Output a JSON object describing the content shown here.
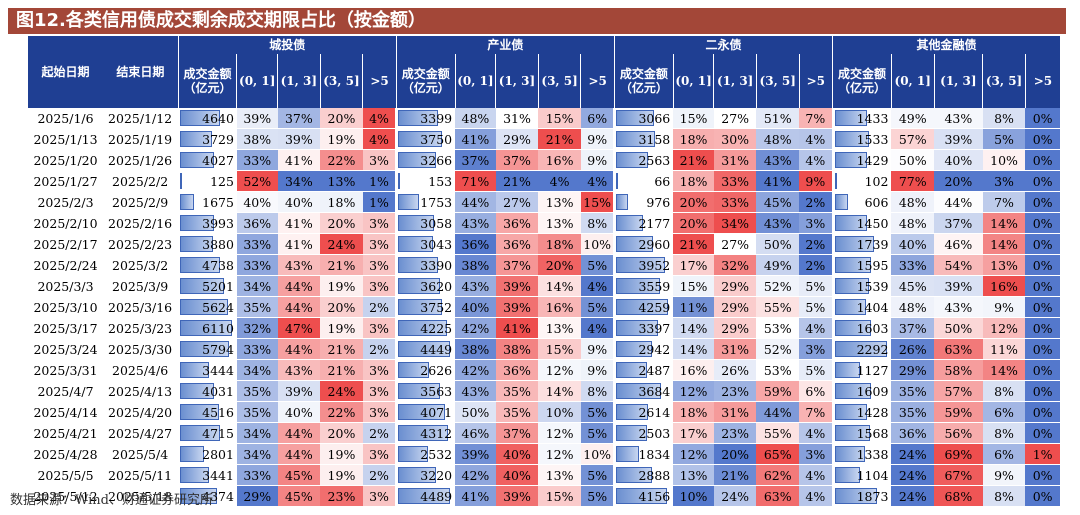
{
  "title": "图12.各类信用债成交剩余成交期限占比（按金额）",
  "header": {
    "start_date": "起始日期",
    "end_date": "结束日期",
    "groups": [
      "城投债",
      "产业债",
      "二永债",
      "其他金融债"
    ],
    "subheaders": [
      "成交金额（亿元）",
      "(0, 1]",
      "(1, 3]",
      "(3, 5]",
      ">5"
    ]
  },
  "note": "数据来源：Wind、财通证券研究所",
  "chart_data": {
    "type": "table",
    "title": "图12.各类信用债成交剩余成交期限占比（按金额）",
    "columns": [
      "起始日期",
      "结束日期",
      "城投债",
      "产业债",
      "二永债",
      "其他金融债"
    ],
    "metrics": [
      "成交金额（亿元）",
      "(0, 1]",
      "(1, 3]",
      "(3, 5]",
      ">5"
    ],
    "rows": [
      {
        "start": "2025/1/6",
        "end": "2025/1/12",
        "values": [
          [
            4640,
            39,
            37,
            20,
            4
          ],
          [
            3399,
            48,
            31,
            15,
            6
          ],
          [
            3066,
            15,
            27,
            51,
            7
          ],
          [
            1433,
            49,
            43,
            8,
            0
          ]
        ]
      },
      {
        "start": "2025/1/13",
        "end": "2025/1/19",
        "values": [
          [
            3729,
            38,
            39,
            19,
            4
          ],
          [
            3750,
            41,
            29,
            21,
            9
          ],
          [
            3158,
            18,
            30,
            48,
            4
          ],
          [
            1533,
            57,
            39,
            5,
            0
          ]
        ]
      },
      {
        "start": "2025/1/20",
        "end": "2025/1/26",
        "values": [
          [
            4027,
            33,
            41,
            22,
            3
          ],
          [
            3266,
            37,
            37,
            16,
            9
          ],
          [
            2563,
            21,
            31,
            43,
            4
          ],
          [
            1429,
            50,
            40,
            10,
            0
          ]
        ]
      },
      {
        "start": "2025/1/27",
        "end": "2025/2/2",
        "values": [
          [
            125,
            52,
            34,
            13,
            1
          ],
          [
            153,
            71,
            21,
            4,
            4
          ],
          [
            66,
            18,
            33,
            41,
            9
          ],
          [
            102,
            77,
            20,
            3,
            0
          ]
        ]
      },
      {
        "start": "2025/2/3",
        "end": "2025/2/9",
        "values": [
          [
            1675,
            40,
            40,
            18,
            1
          ],
          [
            1753,
            44,
            27,
            13,
            15
          ],
          [
            976,
            20,
            33,
            45,
            2
          ],
          [
            606,
            48,
            44,
            7,
            0
          ]
        ]
      },
      {
        "start": "2025/2/10",
        "end": "2025/2/16",
        "values": [
          [
            3993,
            36,
            41,
            20,
            3
          ],
          [
            3058,
            43,
            36,
            13,
            8
          ],
          [
            2177,
            20,
            34,
            43,
            3
          ],
          [
            1450,
            48,
            37,
            14,
            0
          ]
        ]
      },
      {
        "start": "2025/2/17",
        "end": "2025/2/23",
        "values": [
          [
            3880,
            33,
            41,
            24,
            3
          ],
          [
            3043,
            36,
            36,
            18,
            10
          ],
          [
            2960,
            21,
            27,
            50,
            2
          ],
          [
            1739,
            40,
            46,
            14,
            0
          ]
        ]
      },
      {
        "start": "2025/2/24",
        "end": "2025/3/2",
        "values": [
          [
            4738,
            33,
            43,
            21,
            3
          ],
          [
            3390,
            38,
            37,
            20,
            5
          ],
          [
            3952,
            17,
            32,
            49,
            2
          ],
          [
            1595,
            33,
            54,
            13,
            0
          ]
        ]
      },
      {
        "start": "2025/3/3",
        "end": "2025/3/9",
        "values": [
          [
            5201,
            34,
            44,
            19,
            3
          ],
          [
            3620,
            43,
            39,
            14,
            4
          ],
          [
            3559,
            15,
            29,
            52,
            5
          ],
          [
            1539,
            45,
            39,
            16,
            0
          ]
        ]
      },
      {
        "start": "2025/3/10",
        "end": "2025/3/16",
        "values": [
          [
            5624,
            35,
            44,
            20,
            2
          ],
          [
            3752,
            40,
            39,
            16,
            5
          ],
          [
            4259,
            11,
            29,
            55,
            5
          ],
          [
            1404,
            48,
            43,
            9,
            0
          ]
        ]
      },
      {
        "start": "2025/3/17",
        "end": "2025/3/23",
        "values": [
          [
            6110,
            32,
            47,
            19,
            3
          ],
          [
            4225,
            42,
            41,
            13,
            4
          ],
          [
            3397,
            14,
            29,
            53,
            4
          ],
          [
            1603,
            37,
            50,
            12,
            0
          ]
        ]
      },
      {
        "start": "2025/3/24",
        "end": "2025/3/30",
        "values": [
          [
            5794,
            33,
            44,
            21,
            2
          ],
          [
            4449,
            38,
            38,
            15,
            9
          ],
          [
            2942,
            14,
            31,
            52,
            3
          ],
          [
            2292,
            26,
            63,
            11,
            0
          ]
        ]
      },
      {
        "start": "2025/3/31",
        "end": "2025/4/6",
        "values": [
          [
            3444,
            34,
            43,
            21,
            3
          ],
          [
            2626,
            42,
            36,
            12,
            9
          ],
          [
            2487,
            16,
            26,
            53,
            5
          ],
          [
            1127,
            29,
            58,
            14,
            0
          ]
        ]
      },
      {
        "start": "2025/4/7",
        "end": "2025/4/13",
        "values": [
          [
            4031,
            35,
            39,
            24,
            3
          ],
          [
            3563,
            43,
            35,
            14,
            8
          ],
          [
            3684,
            12,
            23,
            59,
            6
          ],
          [
            1609,
            35,
            57,
            8,
            0
          ]
        ]
      },
      {
        "start": "2025/4/14",
        "end": "2025/4/20",
        "values": [
          [
            4516,
            35,
            40,
            22,
            3
          ],
          [
            4071,
            50,
            35,
            10,
            5
          ],
          [
            2614,
            18,
            31,
            44,
            7
          ],
          [
            1428,
            35,
            59,
            6,
            0
          ]
        ]
      },
      {
        "start": "2025/4/21",
        "end": "2025/4/27",
        "values": [
          [
            4715,
            34,
            44,
            20,
            2
          ],
          [
            4312,
            46,
            37,
            12,
            5
          ],
          [
            2503,
            17,
            23,
            55,
            4
          ],
          [
            1568,
            36,
            56,
            8,
            0
          ]
        ]
      },
      {
        "start": "2025/4/28",
        "end": "2025/5/4",
        "values": [
          [
            2801,
            34,
            44,
            19,
            3
          ],
          [
            2532,
            39,
            40,
            12,
            10
          ],
          [
            1834,
            12,
            20,
            65,
            3
          ],
          [
            1338,
            24,
            69,
            6,
            1
          ]
        ]
      },
      {
        "start": "2025/5/5",
        "end": "2025/5/11",
        "values": [
          [
            3441,
            33,
            45,
            19,
            2
          ],
          [
            3220,
            42,
            40,
            13,
            5
          ],
          [
            2888,
            13,
            21,
            62,
            4
          ],
          [
            1104,
            24,
            67,
            9,
            0
          ]
        ]
      },
      {
        "start": "2025/5/12",
        "end": "2025/5/18",
        "values": [
          [
            4374,
            29,
            45,
            23,
            3
          ],
          [
            4489,
            41,
            39,
            15,
            5
          ],
          [
            4156,
            10,
            24,
            63,
            4
          ],
          [
            1873,
            24,
            68,
            8,
            0
          ]
        ]
      }
    ]
  }
}
